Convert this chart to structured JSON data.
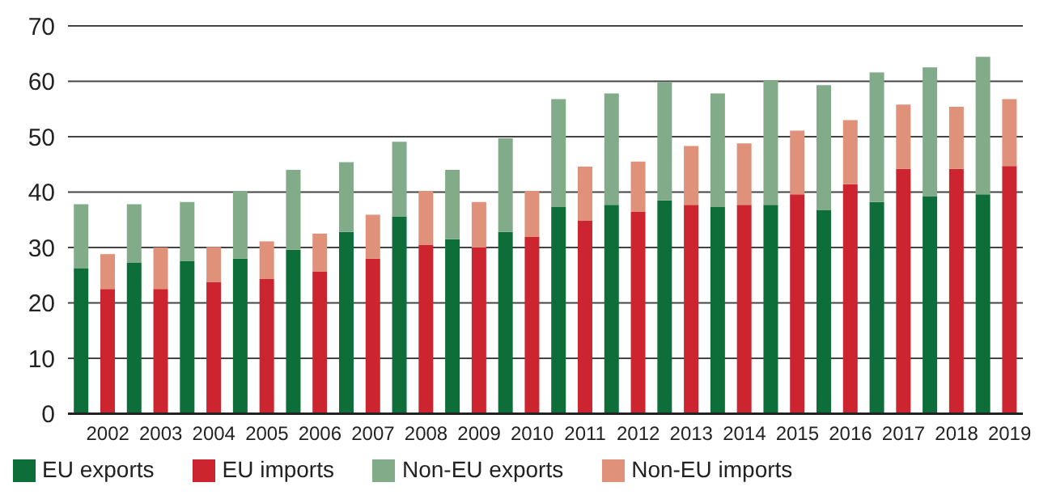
{
  "chart_data": {
    "type": "bar",
    "stacked": true,
    "categories": [
      null,
      "2002",
      null,
      "2003",
      null,
      "2004",
      null,
      "2005",
      null,
      "2006",
      null,
      "2007",
      null,
      "2008",
      null,
      "2009",
      null,
      "2010",
      null,
      "2011",
      null,
      "2012",
      null,
      "2013",
      null,
      "2014",
      null,
      "2015",
      null,
      "2016",
      null,
      "2017",
      null,
      "2018",
      null,
      "2019"
    ],
    "series": [
      {
        "name": "EU exports",
        "color": "#0e6e3a",
        "values": [
          26.2,
          null,
          27.2,
          null,
          27.6,
          null,
          28,
          null,
          29.6,
          null,
          32.8,
          null,
          35.6,
          null,
          31.5,
          null,
          32.8,
          null,
          37.3,
          null,
          37.7,
          null,
          38.5,
          null,
          37.3,
          null,
          37.7,
          null,
          36.7,
          null,
          38.2,
          null,
          39.2,
          null,
          39.6,
          null
        ]
      },
      {
        "name": "Non-EU exports",
        "color": "#82ab8a",
        "values": [
          11.6,
          null,
          10.6,
          null,
          10.6,
          null,
          12.2,
          null,
          14.4,
          null,
          12.6,
          null,
          13.5,
          null,
          12.5,
          null,
          16.9,
          null,
          19.5,
          null,
          20.1,
          null,
          21.3,
          null,
          20.5,
          null,
          22.5,
          null,
          22.6,
          null,
          23.4,
          null,
          23.3,
          null,
          24.8,
          null
        ]
      },
      {
        "name": "EU imports",
        "color": "#cc2530",
        "values": [
          null,
          22.5,
          null,
          22.5,
          null,
          23.8,
          null,
          24.3,
          null,
          25.7,
          null,
          28,
          null,
          30.5,
          null,
          30,
          null,
          31.9,
          null,
          34.8,
          null,
          36.4,
          null,
          37.7,
          null,
          37.7,
          null,
          39.6,
          null,
          41.4,
          null,
          44.2,
          null,
          44.2,
          null,
          44.7
        ]
      },
      {
        "name": "Non-EU imports",
        "color": "#e0917a",
        "values": [
          null,
          6.3,
          null,
          7.5,
          null,
          6.3,
          null,
          6.8,
          null,
          6.8,
          null,
          7.9,
          null,
          9.7,
          null,
          8.2,
          null,
          8.3,
          null,
          9.8,
          null,
          9.1,
          null,
          10.6,
          null,
          11.1,
          null,
          11.5,
          null,
          11.6,
          null,
          11.6,
          null,
          11.2,
          null,
          12.1
        ]
      }
    ],
    "ylim": [
      0,
      70
    ],
    "yticks": [
      0,
      10,
      20,
      30,
      40,
      50,
      60,
      70
    ],
    "grid": "y",
    "legend": "bottom left"
  }
}
